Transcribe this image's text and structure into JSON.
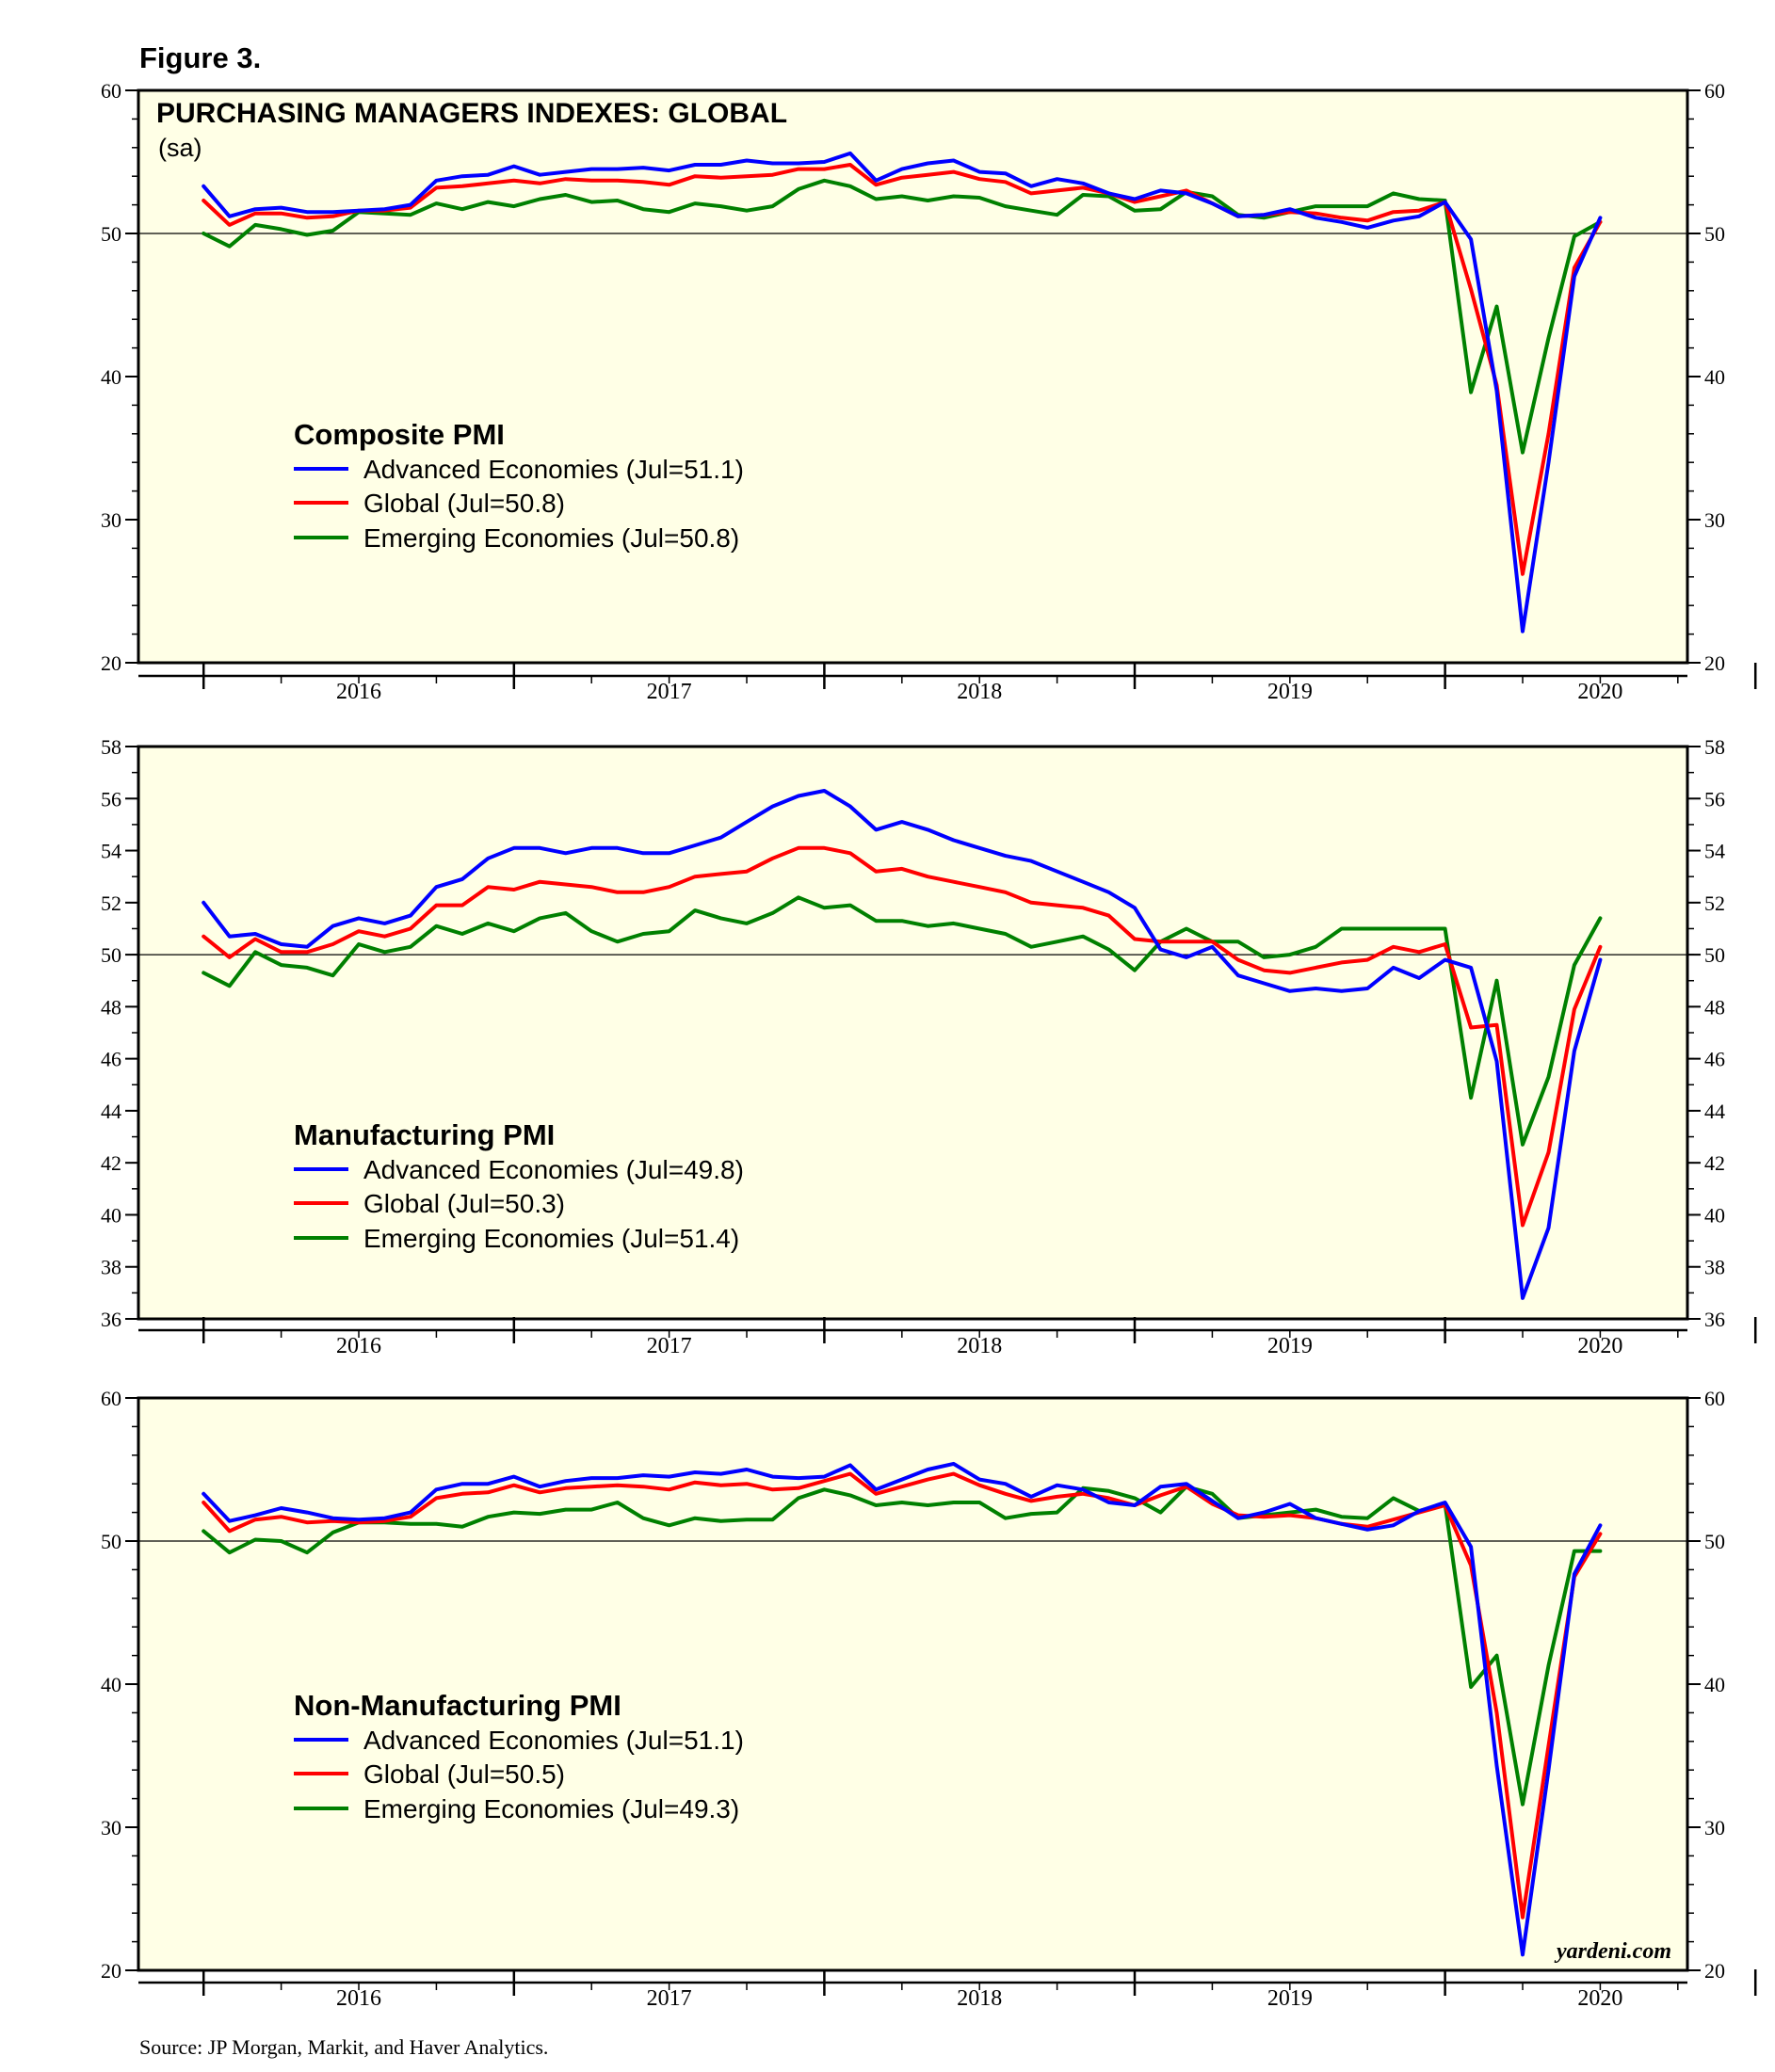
{
  "figure_label": "Figure 3.",
  "main_title": "PURCHASING MANAGERS INDEXES: GLOBAL",
  "subtitle": "(sa)",
  "source": "Source: JP Morgan, Markit, and Haver Analytics.",
  "watermark": "yardeni.com",
  "colors": {
    "advanced": "#0000ff",
    "global": "#ff0000",
    "emerging": "#008000",
    "plot_bg": "#ffffe6",
    "ref_line": "#000000"
  },
  "chart_data": [
    {
      "type": "line",
      "title": "Composite PMI",
      "x_tick_labels": [
        "2016",
        "2017",
        "2018",
        "2019",
        "2020"
      ],
      "ylim": [
        20,
        60
      ],
      "y_ticks": [
        20,
        30,
        40,
        50,
        60
      ],
      "y_minor_step": 2,
      "reference_line": 50,
      "series": [
        {
          "key": "advanced",
          "name": "Advanced Economies (Jul=51.1)",
          "values": [
            53.3,
            51.2,
            51.7,
            51.8,
            51.5,
            51.5,
            51.6,
            51.7,
            52.0,
            53.7,
            54.0,
            54.1,
            54.7,
            54.1,
            54.3,
            54.5,
            54.5,
            54.6,
            54.4,
            54.8,
            54.8,
            55.1,
            54.9,
            54.9,
            55.0,
            55.6,
            53.7,
            54.5,
            54.9,
            55.1,
            54.3,
            54.2,
            53.3,
            53.8,
            53.5,
            52.8,
            52.4,
            53.0,
            52.8,
            52.1,
            51.2,
            51.3,
            51.7,
            51.1,
            50.8,
            50.4,
            50.9,
            51.2,
            52.2,
            49.6,
            39.0,
            22.2,
            34.0,
            47.0,
            51.1
          ]
        },
        {
          "key": "global",
          "name": "Global (Jul=50.8)",
          "values": [
            52.3,
            50.6,
            51.4,
            51.4,
            51.1,
            51.2,
            51.6,
            51.6,
            51.8,
            53.2,
            53.3,
            53.5,
            53.7,
            53.5,
            53.8,
            53.7,
            53.7,
            53.6,
            53.4,
            54.0,
            53.9,
            54.0,
            54.1,
            54.5,
            54.5,
            54.8,
            53.4,
            53.9,
            54.1,
            54.3,
            53.8,
            53.6,
            52.8,
            53.0,
            53.2,
            52.8,
            52.2,
            52.6,
            53.0,
            52.1,
            51.2,
            51.3,
            51.5,
            51.4,
            51.1,
            50.9,
            51.5,
            51.6,
            52.2,
            46.1,
            39.4,
            26.2,
            36.0,
            47.6,
            50.8
          ]
        },
        {
          "key": "emerging",
          "name": "Emerging Economies (Jul=50.8)",
          "values": [
            50.0,
            49.1,
            50.6,
            50.3,
            49.9,
            50.2,
            51.5,
            51.4,
            51.3,
            52.1,
            51.7,
            52.2,
            51.9,
            52.4,
            52.7,
            52.2,
            52.3,
            51.7,
            51.5,
            52.1,
            51.9,
            51.6,
            51.9,
            53.1,
            53.7,
            53.3,
            52.4,
            52.6,
            52.3,
            52.6,
            52.5,
            51.9,
            51.6,
            51.3,
            52.7,
            52.6,
            51.6,
            51.7,
            52.9,
            52.6,
            51.3,
            51.1,
            51.5,
            51.9,
            51.9,
            51.9,
            52.8,
            52.4,
            52.3,
            38.9,
            44.9,
            34.7,
            42.7,
            49.8,
            50.8
          ]
        }
      ]
    },
    {
      "type": "line",
      "title": "Manufacturing PMI",
      "x_tick_labels": [
        "2016",
        "2017",
        "2018",
        "2019",
        "2020"
      ],
      "ylim": [
        36,
        58
      ],
      "y_ticks": [
        36,
        38,
        40,
        42,
        44,
        46,
        48,
        50,
        52,
        54,
        56,
        58
      ],
      "y_minor_step": 1,
      "reference_line": 50,
      "series": [
        {
          "key": "advanced",
          "name": "Advanced Economies (Jul=49.8)",
          "values": [
            52.0,
            50.7,
            50.8,
            50.4,
            50.3,
            51.1,
            51.4,
            51.2,
            51.5,
            52.6,
            52.9,
            53.7,
            54.1,
            54.1,
            53.9,
            54.1,
            54.1,
            53.9,
            53.9,
            54.2,
            54.5,
            55.1,
            55.7,
            56.1,
            56.3,
            55.7,
            54.8,
            55.1,
            54.8,
            54.4,
            54.1,
            53.8,
            53.6,
            53.2,
            52.8,
            52.4,
            51.8,
            50.2,
            49.9,
            50.3,
            49.2,
            48.9,
            48.6,
            48.7,
            48.6,
            48.7,
            49.5,
            49.1,
            49.8,
            49.5,
            45.9,
            36.8,
            39.5,
            46.3,
            49.8
          ]
        },
        {
          "key": "global",
          "name": "Global (Jul=50.3)",
          "values": [
            50.7,
            49.9,
            50.6,
            50.1,
            50.1,
            50.4,
            50.9,
            50.7,
            51.0,
            51.9,
            51.9,
            52.6,
            52.5,
            52.8,
            52.7,
            52.6,
            52.4,
            52.4,
            52.6,
            53.0,
            53.1,
            53.2,
            53.7,
            54.1,
            54.1,
            53.9,
            53.2,
            53.3,
            53.0,
            52.8,
            52.6,
            52.4,
            52.0,
            51.9,
            51.8,
            51.5,
            50.6,
            50.5,
            50.5,
            50.5,
            49.8,
            49.4,
            49.3,
            49.5,
            49.7,
            49.8,
            50.3,
            50.1,
            50.4,
            47.2,
            47.3,
            39.6,
            42.4,
            47.9,
            50.3
          ]
        },
        {
          "key": "emerging",
          "name": "Emerging Economies (Jul=51.4)",
          "values": [
            49.3,
            48.8,
            50.1,
            49.6,
            49.5,
            49.2,
            50.4,
            50.1,
            50.3,
            51.1,
            50.8,
            51.2,
            50.9,
            51.4,
            51.6,
            50.9,
            50.5,
            50.8,
            50.9,
            51.7,
            51.4,
            51.2,
            51.6,
            52.2,
            51.8,
            51.9,
            51.3,
            51.3,
            51.1,
            51.2,
            51.0,
            50.8,
            50.3,
            50.5,
            50.7,
            50.2,
            49.4,
            50.5,
            51.0,
            50.5,
            50.5,
            49.9,
            50.0,
            50.3,
            51.0,
            51.0,
            51.0,
            51.0,
            51.0,
            44.5,
            49.0,
            42.7,
            45.3,
            49.6,
            51.4
          ]
        }
      ]
    },
    {
      "type": "line",
      "title": "Non-Manufacturing PMI",
      "x_tick_labels": [
        "2016",
        "2017",
        "2018",
        "2019",
        "2020"
      ],
      "ylim": [
        20,
        60
      ],
      "y_ticks": [
        20,
        30,
        40,
        50,
        60
      ],
      "y_minor_step": 2,
      "reference_line": 50,
      "series": [
        {
          "key": "advanced",
          "name": "Advanced Economies (Jul=51.1)",
          "values": [
            53.3,
            51.4,
            51.8,
            52.3,
            52.0,
            51.6,
            51.5,
            51.6,
            52.0,
            53.6,
            54.0,
            54.0,
            54.5,
            53.8,
            54.2,
            54.4,
            54.4,
            54.6,
            54.5,
            54.8,
            54.7,
            55.0,
            54.5,
            54.4,
            54.5,
            55.3,
            53.6,
            54.3,
            55.0,
            55.4,
            54.3,
            54.0,
            53.1,
            53.9,
            53.6,
            52.7,
            52.5,
            53.8,
            54.0,
            52.8,
            51.6,
            52.0,
            52.6,
            51.6,
            51.2,
            50.8,
            51.1,
            52.1,
            52.7,
            49.6,
            34.3,
            21.1,
            34.0,
            47.7,
            51.1
          ]
        },
        {
          "key": "global",
          "name": "Global (Jul=50.5)",
          "values": [
            52.7,
            50.7,
            51.5,
            51.7,
            51.3,
            51.4,
            51.3,
            51.4,
            51.7,
            53.0,
            53.3,
            53.4,
            53.9,
            53.4,
            53.7,
            53.8,
            53.9,
            53.8,
            53.6,
            54.1,
            53.9,
            54.0,
            53.6,
            53.7,
            54.2,
            54.7,
            53.3,
            53.8,
            54.3,
            54.7,
            53.9,
            53.3,
            52.8,
            53.1,
            53.3,
            53.0,
            52.5,
            53.2,
            53.8,
            52.6,
            51.8,
            51.7,
            51.8,
            51.6,
            51.2,
            51.0,
            51.5,
            52.0,
            52.5,
            48.3,
            38.0,
            23.7,
            35.7,
            47.5,
            50.5
          ]
        },
        {
          "key": "emerging",
          "name": "Emerging Economies (Jul=49.3)",
          "values": [
            50.7,
            49.2,
            50.1,
            50.0,
            49.2,
            50.6,
            51.3,
            51.3,
            51.2,
            51.2,
            51.0,
            51.7,
            52.0,
            51.9,
            52.2,
            52.2,
            52.7,
            51.6,
            51.1,
            51.6,
            51.4,
            51.5,
            51.5,
            53.0,
            53.6,
            53.2,
            52.5,
            52.7,
            52.5,
            52.7,
            52.7,
            51.6,
            51.9,
            52.0,
            53.7,
            53.5,
            53.0,
            52.0,
            53.8,
            53.3,
            51.6,
            51.8,
            52.0,
            52.2,
            51.7,
            51.6,
            53.0,
            52.1,
            52.6,
            39.8,
            42.0,
            31.6,
            41.3,
            49.3,
            49.3
          ]
        }
      ]
    }
  ]
}
